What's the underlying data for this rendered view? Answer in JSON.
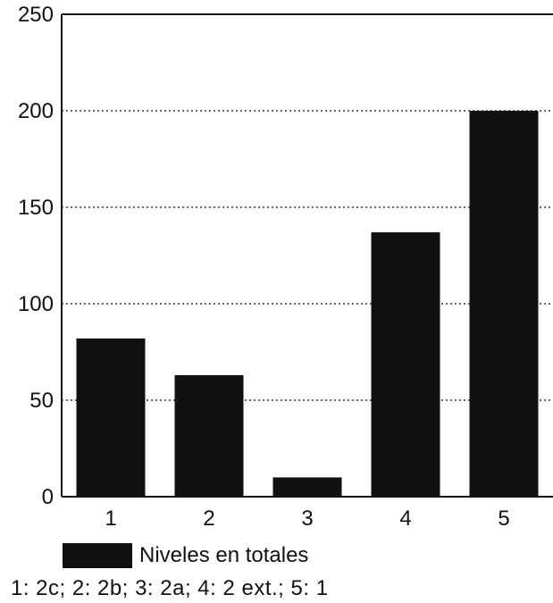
{
  "chart_data": {
    "type": "bar",
    "categories": [
      "1",
      "2",
      "3",
      "4",
      "5"
    ],
    "values": [
      82,
      63,
      10,
      137,
      200
    ],
    "title": "",
    "xlabel": "",
    "ylabel": "",
    "ylim": [
      0,
      250
    ],
    "yticks": [
      "0",
      "50",
      "100",
      "150",
      "200",
      "250"
    ],
    "grid": true,
    "legend": "bottom-left",
    "bar_color": "#111111",
    "series_name": "Niveles en totales",
    "note": "1: 2c; 2: 2b; 3: 2a; 4: 2 ext.; 5: 1"
  }
}
